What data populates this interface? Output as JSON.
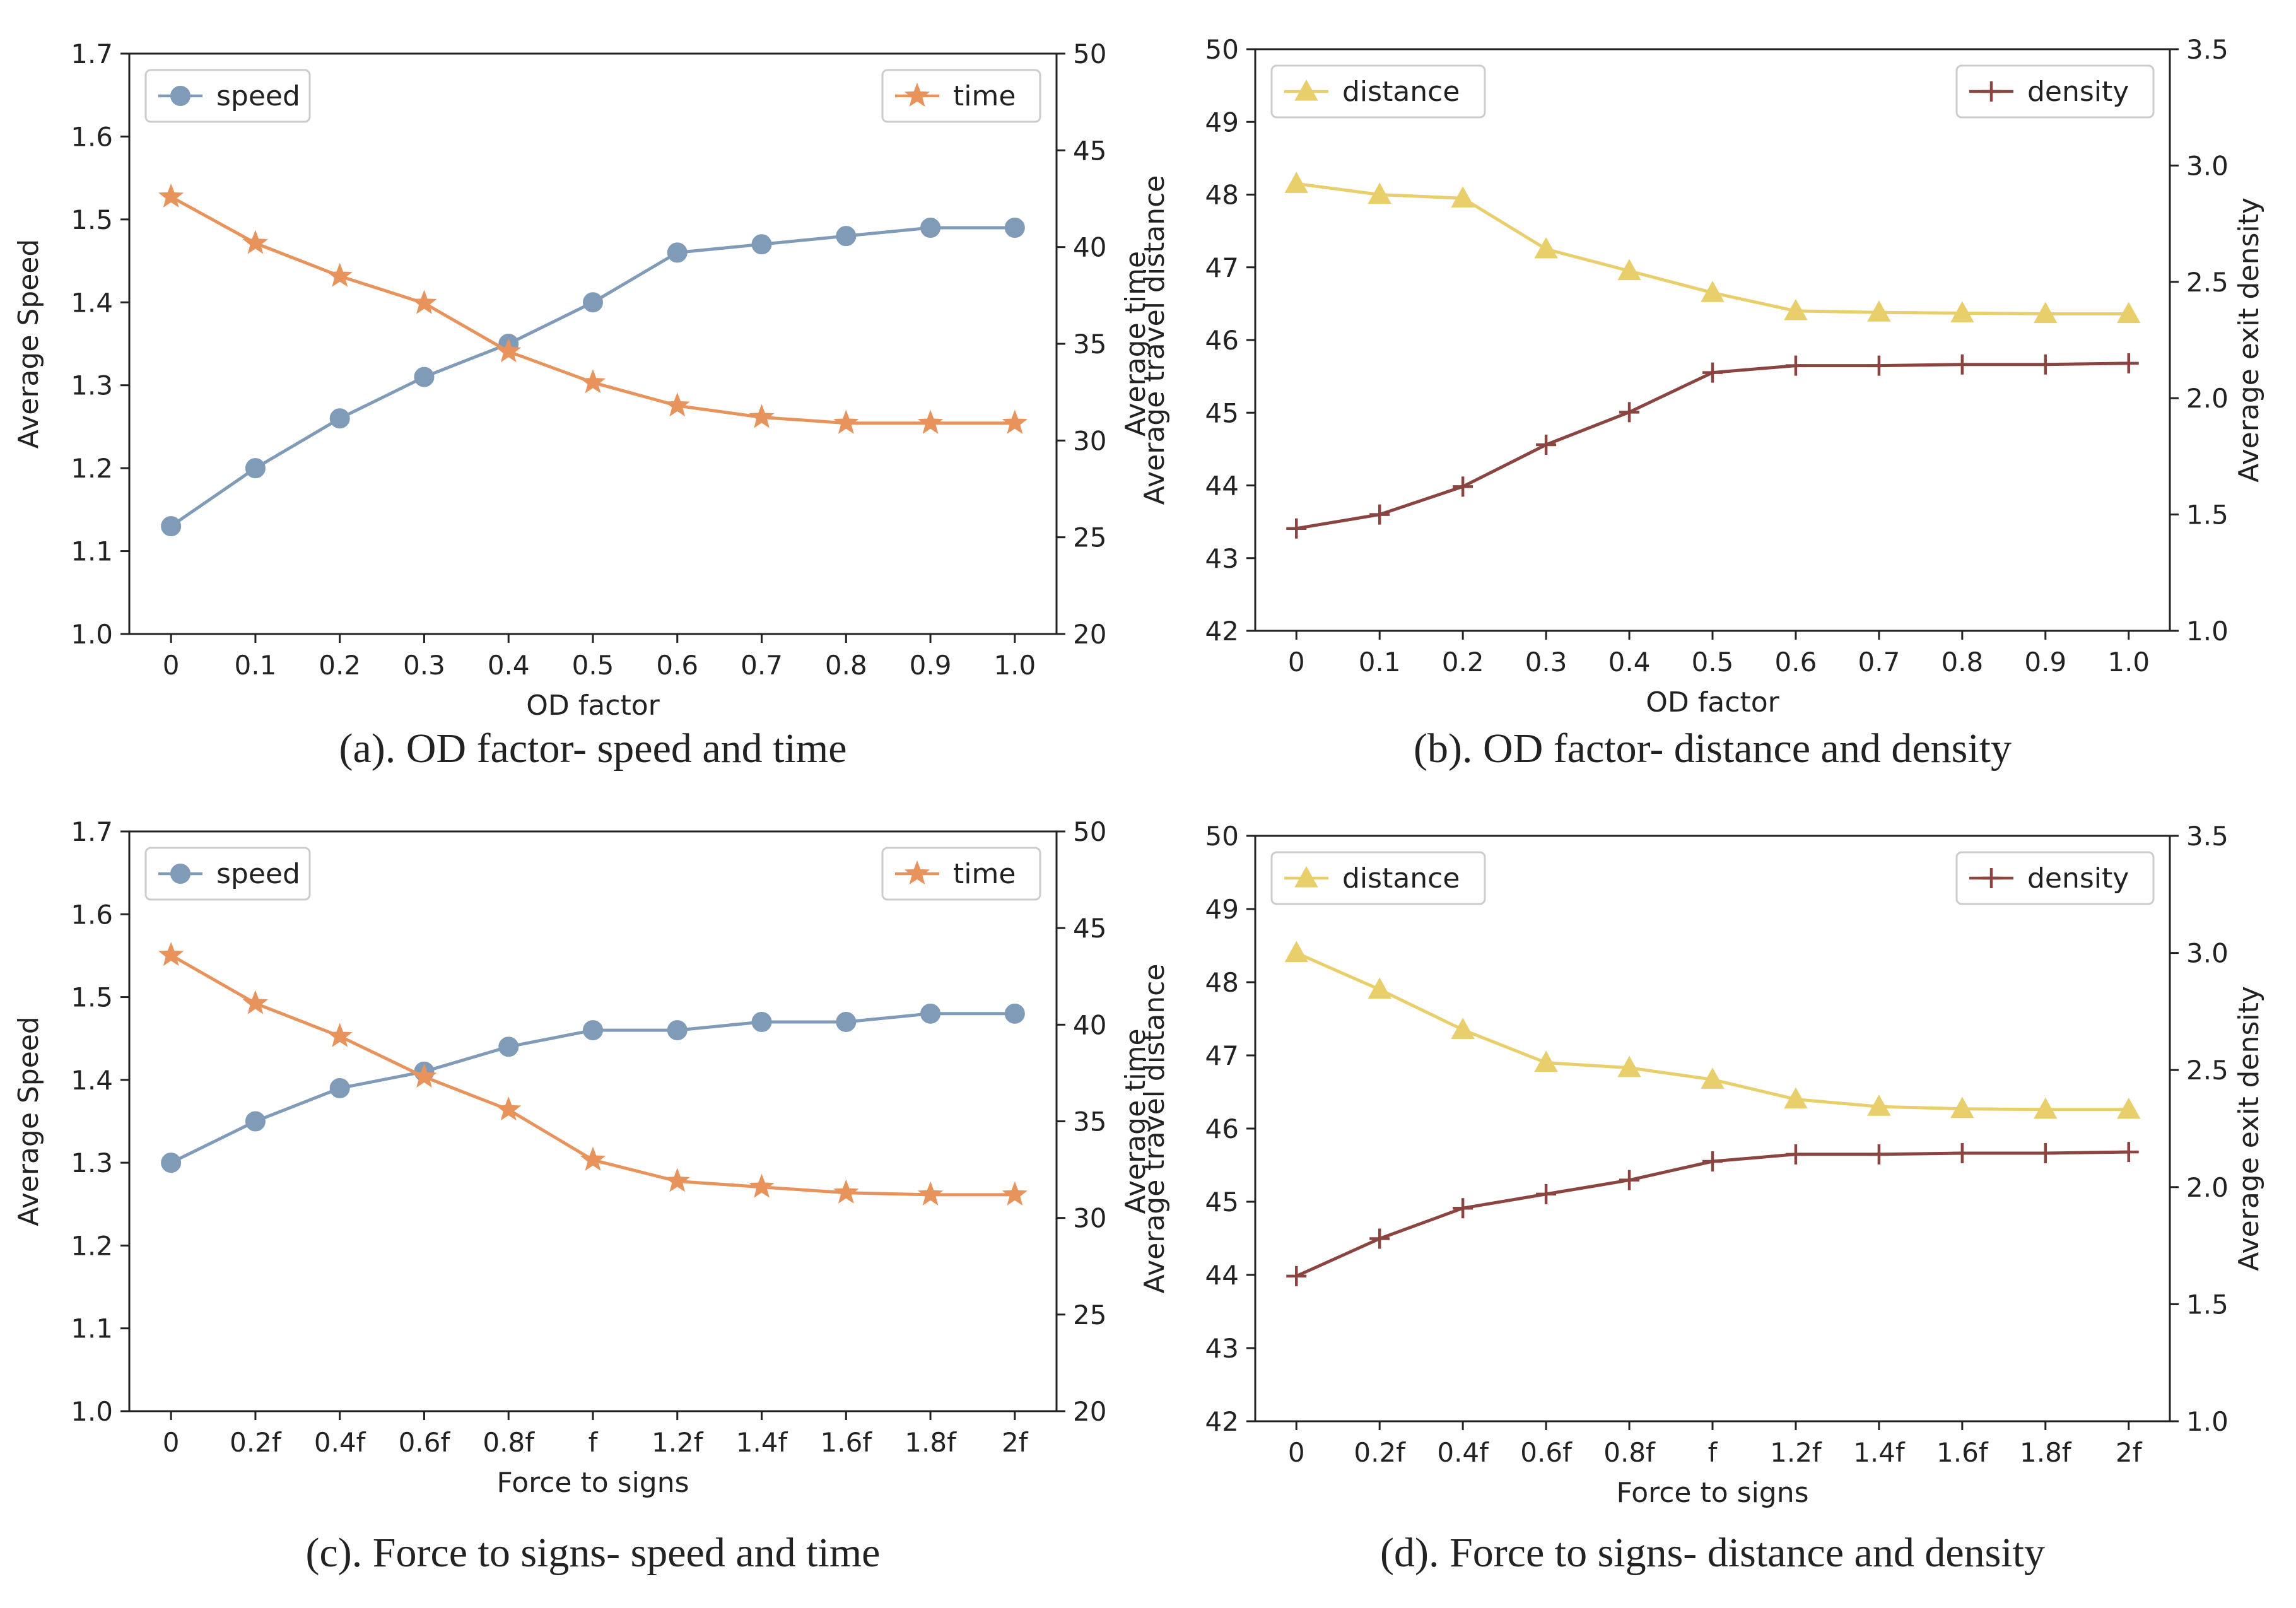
{
  "colors": {
    "speed": "#7f9bb8",
    "time": "#e8935c",
    "distance": "#e9cf6b",
    "density": "#8b4540",
    "axis": "#222222"
  },
  "chart_data": [
    {
      "id": "a",
      "type": "line",
      "caption": "(a). OD factor- speed and time",
      "xlabel": "OD factor",
      "categories": [
        "0",
        "0.1",
        "0.2",
        "0.3",
        "0.4",
        "0.5",
        "0.6",
        "0.7",
        "0.8",
        "0.9",
        "1.0"
      ],
      "left_axis": {
        "label": "Average Speed",
        "ylim": [
          1.0,
          1.7
        ],
        "ticks": [
          1.0,
          1.1,
          1.2,
          1.3,
          1.4,
          1.5,
          1.6,
          1.7
        ],
        "tick_labels": [
          "1.0",
          "1.1",
          "1.2",
          "1.3",
          "1.4",
          "1.5",
          "1.6",
          "1.7"
        ]
      },
      "right_axis": {
        "label": "Average time",
        "ylim": [
          20,
          50
        ],
        "ticks": [
          20,
          25,
          30,
          35,
          40,
          45,
          50
        ],
        "tick_labels": [
          "20",
          "25",
          "30",
          "35",
          "40",
          "45",
          "50"
        ]
      },
      "series": [
        {
          "name": "speed",
          "axis": "left",
          "marker": "circle",
          "color_key": "speed",
          "legend": "top-left",
          "values": [
            1.13,
            1.2,
            1.26,
            1.31,
            1.35,
            1.4,
            1.46,
            1.47,
            1.48,
            1.49,
            1.49
          ]
        },
        {
          "name": "time",
          "axis": "right",
          "marker": "star",
          "color_key": "time",
          "legend": "top-right",
          "values": [
            42.6,
            40.2,
            38.5,
            37.1,
            34.6,
            33.0,
            31.8,
            31.2,
            30.9,
            30.9,
            30.9
          ]
        }
      ]
    },
    {
      "id": "b",
      "type": "line",
      "caption": "(b). OD factor- distance and density",
      "xlabel": "OD factor",
      "categories": [
        "0",
        "0.1",
        "0.2",
        "0.3",
        "0.4",
        "0.5",
        "0.6",
        "0.7",
        "0.8",
        "0.9",
        "1.0"
      ],
      "left_axis": {
        "label": "Average travel distance",
        "ylim": [
          42,
          50
        ],
        "ticks": [
          42,
          43,
          44,
          45,
          46,
          47,
          48,
          49,
          50
        ],
        "tick_labels": [
          "42",
          "43",
          "44",
          "45",
          "46",
          "47",
          "48",
          "49",
          "50"
        ]
      },
      "right_axis": {
        "label": "Average exit density",
        "ylim": [
          1.0,
          3.5
        ],
        "ticks": [
          1.0,
          1.5,
          2.0,
          2.5,
          3.0,
          3.5
        ],
        "tick_labels": [
          "1.0",
          "1.5",
          "2.0",
          "2.5",
          "3.0",
          "3.5"
        ]
      },
      "series": [
        {
          "name": "distance",
          "axis": "left",
          "marker": "triangle",
          "color_key": "distance",
          "legend": "top-left",
          "values": [
            48.15,
            48.0,
            47.95,
            47.25,
            46.95,
            46.65,
            46.4,
            46.38,
            46.37,
            46.36,
            46.36
          ]
        },
        {
          "name": "density",
          "axis": "right",
          "marker": "plus",
          "color_key": "density",
          "legend": "top-right",
          "values": [
            1.44,
            1.5,
            1.62,
            1.8,
            1.94,
            2.11,
            2.14,
            2.14,
            2.145,
            2.145,
            2.15
          ]
        }
      ]
    },
    {
      "id": "c",
      "type": "line",
      "caption": "(c). Force to signs- speed and time",
      "xlabel": "Force to signs",
      "categories": [
        "0",
        "0.2f",
        "0.4f",
        "0.6f",
        "0.8f",
        "f",
        "1.2f",
        "1.4f",
        "1.6f",
        "1.8f",
        "2f"
      ],
      "left_axis": {
        "label": "Average Speed",
        "ylim": [
          1.0,
          1.7
        ],
        "ticks": [
          1.0,
          1.1,
          1.2,
          1.3,
          1.4,
          1.5,
          1.6,
          1.7
        ],
        "tick_labels": [
          "1.0",
          "1.1",
          "1.2",
          "1.3",
          "1.4",
          "1.5",
          "1.6",
          "1.7"
        ]
      },
      "right_axis": {
        "label": "Average time",
        "ylim": [
          20,
          50
        ],
        "ticks": [
          20,
          25,
          30,
          35,
          40,
          45,
          50
        ],
        "tick_labels": [
          "20",
          "25",
          "30",
          "35",
          "40",
          "45",
          "50"
        ]
      },
      "series": [
        {
          "name": "speed",
          "axis": "left",
          "marker": "circle",
          "color_key": "speed",
          "legend": "top-left",
          "values": [
            1.3,
            1.35,
            1.39,
            1.41,
            1.44,
            1.46,
            1.46,
            1.47,
            1.47,
            1.48,
            1.48
          ]
        },
        {
          "name": "time",
          "axis": "right",
          "marker": "star",
          "color_key": "time",
          "legend": "top-right",
          "values": [
            43.6,
            41.1,
            39.4,
            37.3,
            35.6,
            33.0,
            31.9,
            31.6,
            31.3,
            31.2,
            31.2
          ]
        }
      ]
    },
    {
      "id": "d",
      "type": "line",
      "caption": "(d). Force to signs- distance and density",
      "xlabel": "Force to signs",
      "categories": [
        "0",
        "0.2f",
        "0.4f",
        "0.6f",
        "0.8f",
        "f",
        "1.2f",
        "1.4f",
        "1.6f",
        "1.8f",
        "2f"
      ],
      "left_axis": {
        "label": "Average travel distance",
        "ylim": [
          42,
          50
        ],
        "ticks": [
          42,
          43,
          44,
          45,
          46,
          47,
          48,
          49,
          50
        ],
        "tick_labels": [
          "42",
          "43",
          "44",
          "45",
          "46",
          "47",
          "48",
          "49",
          "50"
        ]
      },
      "right_axis": {
        "label": "Average exit density",
        "ylim": [
          1.0,
          3.5
        ],
        "ticks": [
          1.0,
          1.5,
          2.0,
          2.5,
          3.0,
          3.5
        ],
        "tick_labels": [
          "1.0",
          "1.5",
          "2.0",
          "2.5",
          "3.0",
          "3.5"
        ]
      },
      "series": [
        {
          "name": "distance",
          "axis": "left",
          "marker": "triangle",
          "color_key": "distance",
          "legend": "top-left",
          "values": [
            48.4,
            47.9,
            47.35,
            46.9,
            46.83,
            46.67,
            46.4,
            46.3,
            46.27,
            46.26,
            46.26
          ]
        },
        {
          "name": "density",
          "axis": "right",
          "marker": "plus",
          "color_key": "density",
          "legend": "top-right",
          "values": [
            1.62,
            1.78,
            1.91,
            1.97,
            2.03,
            2.11,
            2.14,
            2.14,
            2.145,
            2.145,
            2.15
          ]
        }
      ]
    }
  ]
}
